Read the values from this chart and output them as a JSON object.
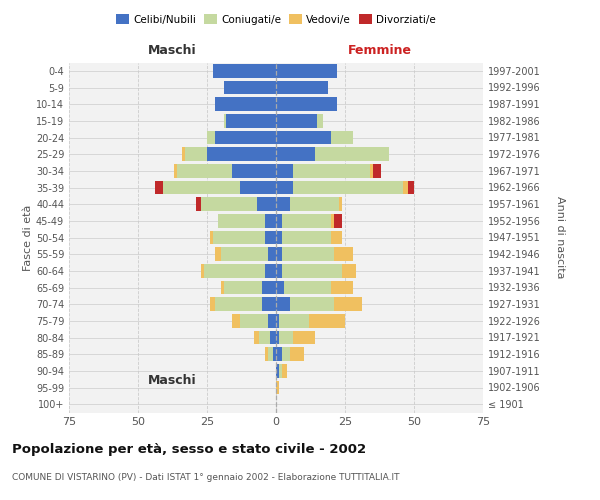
{
  "age_groups": [
    "100+",
    "95-99",
    "90-94",
    "85-89",
    "80-84",
    "75-79",
    "70-74",
    "65-69",
    "60-64",
    "55-59",
    "50-54",
    "45-49",
    "40-44",
    "35-39",
    "30-34",
    "25-29",
    "20-24",
    "15-19",
    "10-14",
    "5-9",
    "0-4"
  ],
  "birth_years": [
    "≤ 1901",
    "1902-1906",
    "1907-1911",
    "1912-1916",
    "1917-1921",
    "1922-1926",
    "1927-1931",
    "1932-1936",
    "1937-1941",
    "1942-1946",
    "1947-1951",
    "1952-1956",
    "1957-1961",
    "1962-1966",
    "1967-1971",
    "1972-1976",
    "1977-1981",
    "1982-1986",
    "1987-1991",
    "1992-1996",
    "1997-2001"
  ],
  "male_celibe": [
    0,
    0,
    0,
    1,
    2,
    3,
    5,
    5,
    4,
    3,
    4,
    4,
    7,
    13,
    16,
    25,
    22,
    18,
    22,
    19,
    23
  ],
  "male_coniugato": [
    0,
    0,
    0,
    2,
    4,
    10,
    17,
    14,
    22,
    17,
    19,
    17,
    20,
    28,
    20,
    8,
    3,
    1,
    0,
    0,
    0
  ],
  "male_vedovo": [
    0,
    0,
    0,
    1,
    2,
    3,
    2,
    1,
    1,
    2,
    1,
    0,
    0,
    0,
    1,
    1,
    0,
    0,
    0,
    0,
    0
  ],
  "male_divorziato": [
    0,
    0,
    0,
    0,
    0,
    0,
    0,
    0,
    0,
    0,
    0,
    0,
    2,
    3,
    0,
    0,
    0,
    0,
    0,
    0,
    0
  ],
  "female_celibe": [
    0,
    0,
    1,
    2,
    1,
    1,
    5,
    3,
    2,
    2,
    2,
    2,
    5,
    6,
    6,
    14,
    20,
    15,
    22,
    19,
    22
  ],
  "female_coniugato": [
    0,
    0,
    1,
    3,
    5,
    11,
    16,
    17,
    22,
    19,
    18,
    18,
    18,
    40,
    28,
    27,
    8,
    2,
    0,
    0,
    0
  ],
  "female_vedovo": [
    0,
    1,
    2,
    5,
    8,
    13,
    10,
    8,
    5,
    7,
    4,
    1,
    1,
    2,
    1,
    0,
    0,
    0,
    0,
    0,
    0
  ],
  "female_divorziato": [
    0,
    0,
    0,
    0,
    0,
    0,
    0,
    0,
    0,
    0,
    0,
    3,
    0,
    2,
    3,
    0,
    0,
    0,
    0,
    0,
    0
  ],
  "xlim": 75,
  "color_celibe": "#4472C4",
  "color_coniugato": "#C5D9A0",
  "color_vedovo": "#F0C060",
  "color_divorziato": "#C0292A",
  "bg_color": "#F2F2F2",
  "grid_color": "#CCCCCC",
  "title": "Popolazione per età, sesso e stato civile - 2002",
  "subtitle": "COMUNE DI VISTARINO (PV) - Dati ISTAT 1° gennaio 2002 - Elaborazione TUTTITALIA.IT",
  "ylabel_left": "Fasce di età",
  "ylabel_right": "Anni di nascita",
  "xlabel_left": "Maschi",
  "xlabel_right": "Femmine",
  "bar_height": 0.82
}
